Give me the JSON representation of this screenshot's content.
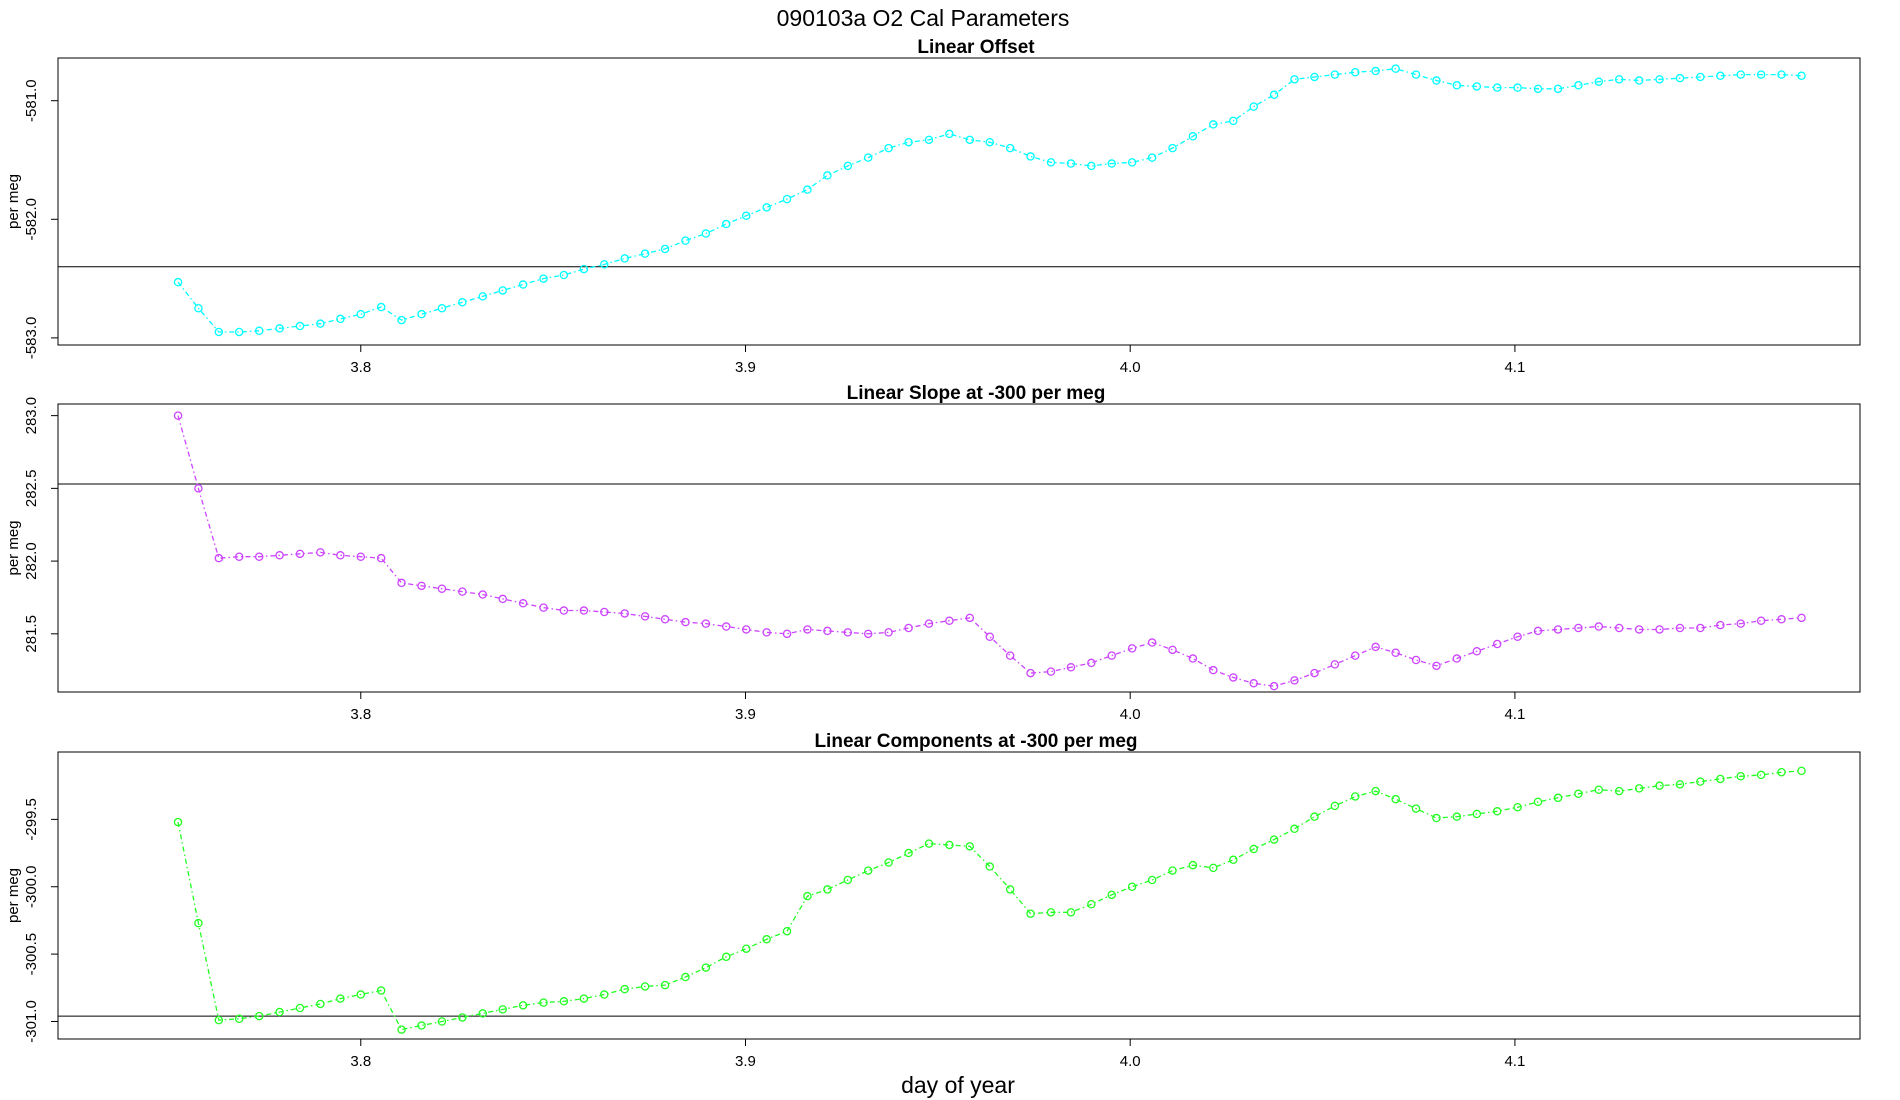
{
  "figure": {
    "title": "090103a   O2 Cal Parameters",
    "xlabel": "day of year"
  },
  "chart_data": [
    {
      "type": "scatter",
      "title": "Linear Offset",
      "ylabel": "per meg",
      "color": "#00ffff",
      "ylim": [
        -583.06,
        -580.64
      ],
      "xlim": [
        3.7213,
        4.1897
      ],
      "yticks": [
        "-583.0",
        "-582.0",
        "-581.0"
      ],
      "ytick_values": [
        -583.0,
        -582.0,
        -581.0
      ],
      "xticks": [
        "3.8",
        "3.9",
        "4.0",
        "4.1"
      ],
      "xtick_values": [
        3.8,
        3.9,
        4.0,
        4.1
      ],
      "hline": -582.4,
      "series": [
        {
          "x": [
            3.7525,
            3.7578,
            3.7631,
            3.7684,
            3.7736,
            3.7789,
            3.7842,
            3.7895,
            3.7947,
            3.8,
            3.8053,
            3.8106,
            3.8158,
            3.8211,
            3.8264,
            3.8317,
            3.8369,
            3.8422,
            3.8475,
            3.8528,
            3.858,
            3.8633,
            3.8686,
            3.8739,
            3.8791,
            3.8844,
            3.8897,
            3.895,
            3.9002,
            3.9055,
            3.9108,
            3.9161,
            3.9213,
            3.9266,
            3.9319,
            3.9372,
            3.9424,
            3.9477,
            3.953,
            3.9583,
            3.9635,
            3.9688,
            3.9741,
            3.9794,
            3.9846,
            3.9899,
            3.9952,
            4.0005,
            4.0057,
            4.011,
            4.0163,
            4.0216,
            4.0268,
            4.0321,
            4.0374,
            4.0427,
            4.0479,
            4.0532,
            4.0585,
            4.0638,
            4.069,
            4.0743,
            4.0796,
            4.0849,
            4.0901,
            4.0954,
            4.1007,
            4.106,
            4.1112,
            4.1165,
            4.1218,
            4.1271,
            4.1323,
            4.1376,
            4.1429,
            4.1482,
            4.1534,
            4.1587,
            4.164,
            4.1693,
            4.1745
          ],
          "y": [
            -582.53,
            -582.75,
            -582.95,
            -582.95,
            -582.94,
            -582.92,
            -582.9,
            -582.88,
            -582.84,
            -582.8,
            -582.74,
            -582.85,
            -582.8,
            -582.75,
            -582.7,
            -582.65,
            -582.6,
            -582.55,
            -582.5,
            -582.47,
            -582.42,
            -582.38,
            -582.33,
            -582.29,
            -582.25,
            -582.18,
            -582.12,
            -582.04,
            -581.97,
            -581.9,
            -581.83,
            -581.75,
            -581.63,
            -581.55,
            -581.48,
            -581.4,
            -581.35,
            -581.33,
            -581.28,
            -581.33,
            -581.35,
            -581.4,
            -581.47,
            -581.52,
            -581.53,
            -581.55,
            -581.53,
            -581.52,
            -581.48,
            -581.4,
            -581.3,
            -581.2,
            -581.17,
            -581.05,
            -580.95,
            -580.82,
            -580.8,
            -580.78,
            -580.76,
            -580.75,
            -580.73,
            -580.78,
            -580.83,
            -580.87,
            -580.88,
            -580.89,
            -580.89,
            -580.9,
            -580.9,
            -580.87,
            -580.84,
            -580.82,
            -580.83,
            -580.82,
            -580.81,
            -580.8,
            -580.79,
            -580.78,
            -580.78,
            -580.78,
            -580.79
          ]
        }
      ]
    },
    {
      "type": "scatter",
      "title": "Linear Slope at -300 per meg",
      "ylabel": "per meg",
      "color": "#cc44ff",
      "ylim": [
        281.1,
        283.08
      ],
      "xlim": [
        3.7213,
        4.1897
      ],
      "yticks": [
        "281.5",
        "282.0",
        "282.5",
        "283.0"
      ],
      "ytick_values": [
        281.5,
        282.0,
        282.5,
        283.0
      ],
      "xticks": [
        "3.8",
        "3.9",
        "4.0",
        "4.1"
      ],
      "xtick_values": [
        3.8,
        3.9,
        4.0,
        4.1
      ],
      "hline": 282.53,
      "series": [
        {
          "x": [
            3.7525,
            3.7578,
            3.7631,
            3.7684,
            3.7736,
            3.7789,
            3.7842,
            3.7895,
            3.7947,
            3.8,
            3.8053,
            3.8106,
            3.8158,
            3.8211,
            3.8264,
            3.8317,
            3.8369,
            3.8422,
            3.8475,
            3.8528,
            3.858,
            3.8633,
            3.8686,
            3.8739,
            3.8791,
            3.8844,
            3.8897,
            3.895,
            3.9002,
            3.9055,
            3.9108,
            3.9161,
            3.9213,
            3.9266,
            3.9319,
            3.9372,
            3.9424,
            3.9477,
            3.953,
            3.9583,
            3.9635,
            3.9688,
            3.9741,
            3.9794,
            3.9846,
            3.9899,
            3.9952,
            4.0005,
            4.0057,
            4.011,
            4.0163,
            4.0216,
            4.0268,
            4.0321,
            4.0374,
            4.0427,
            4.0479,
            4.0532,
            4.0585,
            4.0638,
            4.069,
            4.0743,
            4.0796,
            4.0849,
            4.0901,
            4.0954,
            4.1007,
            4.106,
            4.1112,
            4.1165,
            4.1218,
            4.1271,
            4.1323,
            4.1376,
            4.1429,
            4.1482,
            4.1534,
            4.1587,
            4.164,
            4.1693,
            4.1745
          ],
          "y": [
            283.0,
            282.5,
            282.02,
            282.03,
            282.03,
            282.04,
            282.05,
            282.06,
            282.04,
            282.03,
            282.02,
            281.85,
            281.83,
            281.81,
            281.79,
            281.77,
            281.74,
            281.71,
            281.68,
            281.66,
            281.66,
            281.65,
            281.64,
            281.62,
            281.6,
            281.58,
            281.57,
            281.55,
            281.53,
            281.51,
            281.5,
            281.53,
            281.52,
            281.51,
            281.5,
            281.51,
            281.54,
            281.57,
            281.59,
            281.61,
            281.48,
            281.35,
            281.23,
            281.24,
            281.27,
            281.3,
            281.35,
            281.4,
            281.44,
            281.39,
            281.33,
            281.25,
            281.2,
            281.16,
            281.14,
            281.18,
            281.23,
            281.29,
            281.35,
            281.41,
            281.37,
            281.32,
            281.28,
            281.33,
            281.38,
            281.43,
            281.48,
            281.52,
            281.53,
            281.54,
            281.55,
            281.54,
            281.53,
            281.53,
            281.54,
            281.54,
            281.56,
            281.57,
            281.59,
            281.6,
            281.61
          ]
        }
      ]
    },
    {
      "type": "scatter",
      "title": "Linear Components at -300 per meg",
      "ylabel": "per meg",
      "color": "#22ff22",
      "ylim": [
        -301.13,
        -299.0
      ],
      "xlim": [
        3.7213,
        4.1897
      ],
      "yticks": [
        "-301.0",
        "-300.5",
        "-300.0",
        "-299.5"
      ],
      "ytick_values": [
        -301.0,
        -300.5,
        -300.0,
        -299.5
      ],
      "xticks": [
        "3.8",
        "3.9",
        "4.0",
        "4.1"
      ],
      "xtick_values": [
        3.8,
        3.9,
        4.0,
        4.1
      ],
      "hline": -300.96,
      "series": [
        {
          "x": [
            3.7525,
            3.7578,
            3.7631,
            3.7684,
            3.7736,
            3.7789,
            3.7842,
            3.7895,
            3.7947,
            3.8,
            3.8053,
            3.8106,
            3.8158,
            3.8211,
            3.8264,
            3.8317,
            3.8369,
            3.8422,
            3.8475,
            3.8528,
            3.858,
            3.8633,
            3.8686,
            3.8739,
            3.8791,
            3.8844,
            3.8897,
            3.895,
            3.9002,
            3.9055,
            3.9108,
            3.9161,
            3.9213,
            3.9266,
            3.9319,
            3.9372,
            3.9424,
            3.9477,
            3.953,
            3.9583,
            3.9635,
            3.9688,
            3.9741,
            3.9794,
            3.9846,
            3.9899,
            3.9952,
            4.0005,
            4.0057,
            4.011,
            4.0163,
            4.0216,
            4.0268,
            4.0321,
            4.0374,
            4.0427,
            4.0479,
            4.0532,
            4.0585,
            4.0638,
            4.069,
            4.0743,
            4.0796,
            4.0849,
            4.0901,
            4.0954,
            4.1007,
            4.106,
            4.1112,
            4.1165,
            4.1218,
            4.1271,
            4.1323,
            4.1376,
            4.1429,
            4.1482,
            4.1534,
            4.1587,
            4.164,
            4.1693,
            4.1745
          ],
          "y": [
            -299.52,
            -300.27,
            -300.99,
            -300.98,
            -300.96,
            -300.93,
            -300.9,
            -300.87,
            -300.83,
            -300.8,
            -300.77,
            -301.06,
            -301.03,
            -301.0,
            -300.97,
            -300.94,
            -300.91,
            -300.88,
            -300.86,
            -300.85,
            -300.83,
            -300.8,
            -300.76,
            -300.74,
            -300.73,
            -300.67,
            -300.6,
            -300.52,
            -300.46,
            -300.39,
            -300.33,
            -300.07,
            -300.02,
            -299.95,
            -299.88,
            -299.82,
            -299.75,
            -299.68,
            -299.69,
            -299.7,
            -299.85,
            -300.02,
            -300.2,
            -300.19,
            -300.19,
            -300.13,
            -300.06,
            -300.0,
            -299.95,
            -299.88,
            -299.84,
            -299.86,
            -299.8,
            -299.72,
            -299.65,
            -299.57,
            -299.48,
            -299.4,
            -299.33,
            -299.29,
            -299.35,
            -299.42,
            -299.49,
            -299.48,
            -299.46,
            -299.44,
            -299.41,
            -299.37,
            -299.34,
            -299.31,
            -299.28,
            -299.29,
            -299.27,
            -299.25,
            -299.24,
            -299.22,
            -299.2,
            -299.18,
            -299.17,
            -299.15,
            -299.14
          ]
        }
      ]
    }
  ]
}
